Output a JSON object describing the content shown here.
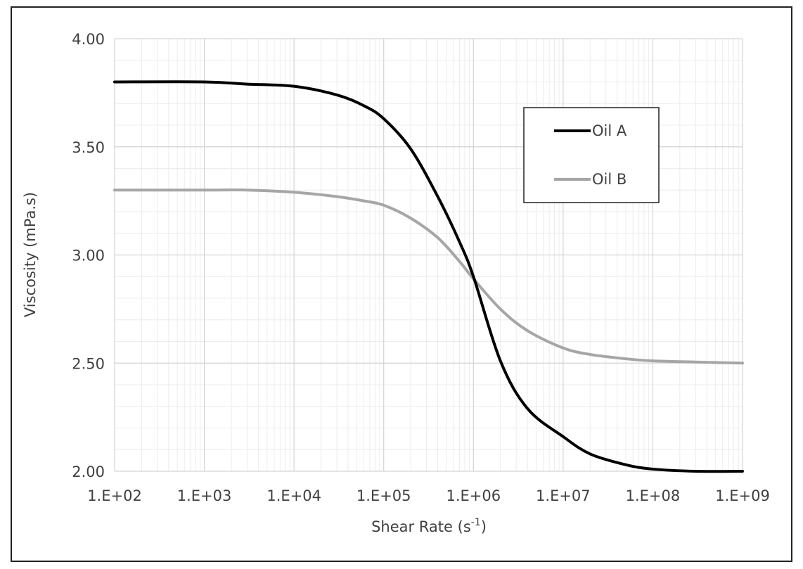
{
  "chart_data": {
    "type": "line",
    "title": "",
    "xlabel": "Shear Rate (s",
    "xlabel_superscript": "-1",
    "xlabel_suffix": ")",
    "ylabel": "Viscosity (mPa.s)",
    "x_scale": "log",
    "xlim": [
      100,
      1000000000
    ],
    "ylim": [
      2.0,
      4.0
    ],
    "x_ticks": [
      100,
      1000,
      10000,
      100000,
      1000000,
      10000000,
      100000000,
      1000000000
    ],
    "x_tick_labels": [
      "1.E+02",
      "1.E+03",
      "1.E+04",
      "1.E+05",
      "1.E+06",
      "1.E+07",
      "1.E+08",
      "1.E+09"
    ],
    "y_ticks": [
      2.0,
      2.5,
      3.0,
      3.5,
      4.0
    ],
    "y_tick_labels": [
      "2.00",
      "2.50",
      "3.00",
      "3.50",
      "4.00"
    ],
    "grid": true,
    "legend_position": "top-right",
    "series": [
      {
        "name": "Oil A",
        "color": "#000000",
        "x": [
          100,
          1000,
          3000,
          10000,
          30000,
          60000,
          100000,
          200000,
          400000,
          700000,
          1000000,
          2000000,
          4000000,
          10000000,
          20000000,
          50000000,
          100000000,
          300000000,
          1000000000
        ],
        "y": [
          3.8,
          3.8,
          3.79,
          3.78,
          3.74,
          3.69,
          3.63,
          3.49,
          3.27,
          3.06,
          2.9,
          2.51,
          2.29,
          2.16,
          2.08,
          2.03,
          2.01,
          2.0,
          2.0
        ]
      },
      {
        "name": "Oil B",
        "color": "#a6a6a6",
        "x": [
          100,
          1000,
          3000,
          10000,
          30000,
          60000,
          100000,
          200000,
          400000,
          700000,
          1000000,
          2000000,
          4000000,
          10000000,
          20000000,
          50000000,
          100000000,
          300000000,
          1000000000
        ],
        "y": [
          3.3,
          3.3,
          3.3,
          3.29,
          3.27,
          3.25,
          3.23,
          3.17,
          3.08,
          2.97,
          2.89,
          2.75,
          2.65,
          2.57,
          2.54,
          2.52,
          2.51,
          2.505,
          2.5
        ]
      }
    ]
  }
}
